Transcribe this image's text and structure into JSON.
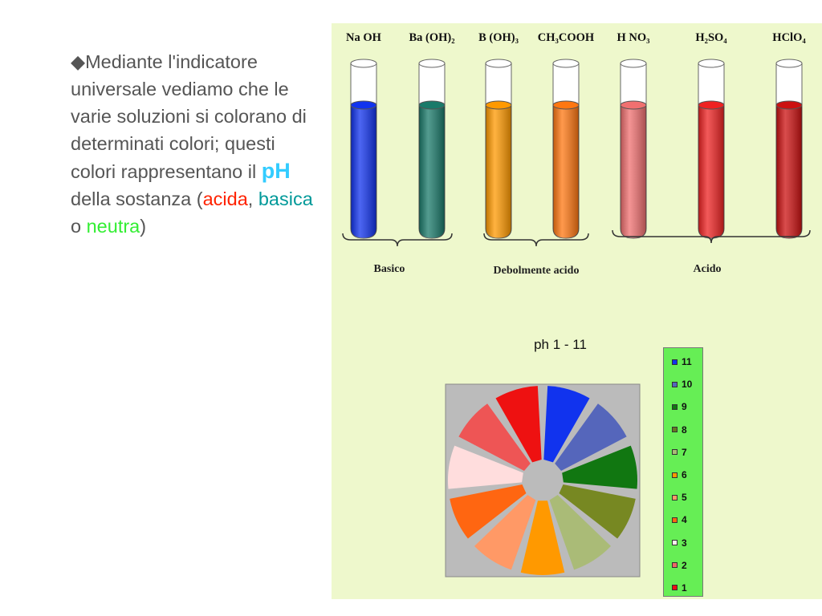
{
  "text": {
    "bullet": "◆",
    "part1": "Mediante l'indicatore universale vediamo che le varie soluzioni si colorano di determinati colori; questi colori rappresentano il ",
    "ph": "pH",
    "part2": " della sostanza (",
    "acida": "acida",
    "comma": ", ",
    "basica": "basica",
    "o": " o ",
    "neutra": "neutra",
    "close": ")"
  },
  "tubes": [
    {
      "label": "Na OH",
      "color": "#1133ee"
    },
    {
      "label": "Ba (OH)₂",
      "color": "#1a7a6a"
    },
    {
      "label": "B (OH)₃",
      "color": "#ff9900"
    },
    {
      "label": "CH₃COOH",
      "color": "#ff7711"
    },
    {
      "label": "H NO₃",
      "color": "#f07070"
    },
    {
      "label": "H₂SO₄",
      "color": "#ee2222"
    },
    {
      "label": "HClO₄",
      "color": "#cc1111"
    }
  ],
  "groups": [
    "Basico",
    "Debolmente acido",
    "Acido"
  ],
  "ph_title": "ph 1 - 11",
  "legend": [
    {
      "label": "11",
      "color": "#1133ee"
    },
    {
      "label": "10",
      "color": "#5566bb"
    },
    {
      "label": "9",
      "color": "#117711"
    },
    {
      "label": "8",
      "color": "#667722"
    },
    {
      "label": "7",
      "color": "#aabb77"
    },
    {
      "label": "6",
      "color": "#ff9900"
    },
    {
      "label": "5",
      "color": "#ff9966"
    },
    {
      "label": "4",
      "color": "#ff6611"
    },
    {
      "label": "3",
      "color": "#ffeeee"
    },
    {
      "label": "2",
      "color": "#ee6666"
    },
    {
      "label": "1",
      "color": "#ee1111"
    }
  ],
  "pie_colors": [
    "#1133ee",
    "#5566bb",
    "#117711",
    "#778822",
    "#aabb77",
    "#ff9900",
    "#ff9966",
    "#ff6611",
    "#ffdddd",
    "#ee5555",
    "#ee1111"
  ]
}
